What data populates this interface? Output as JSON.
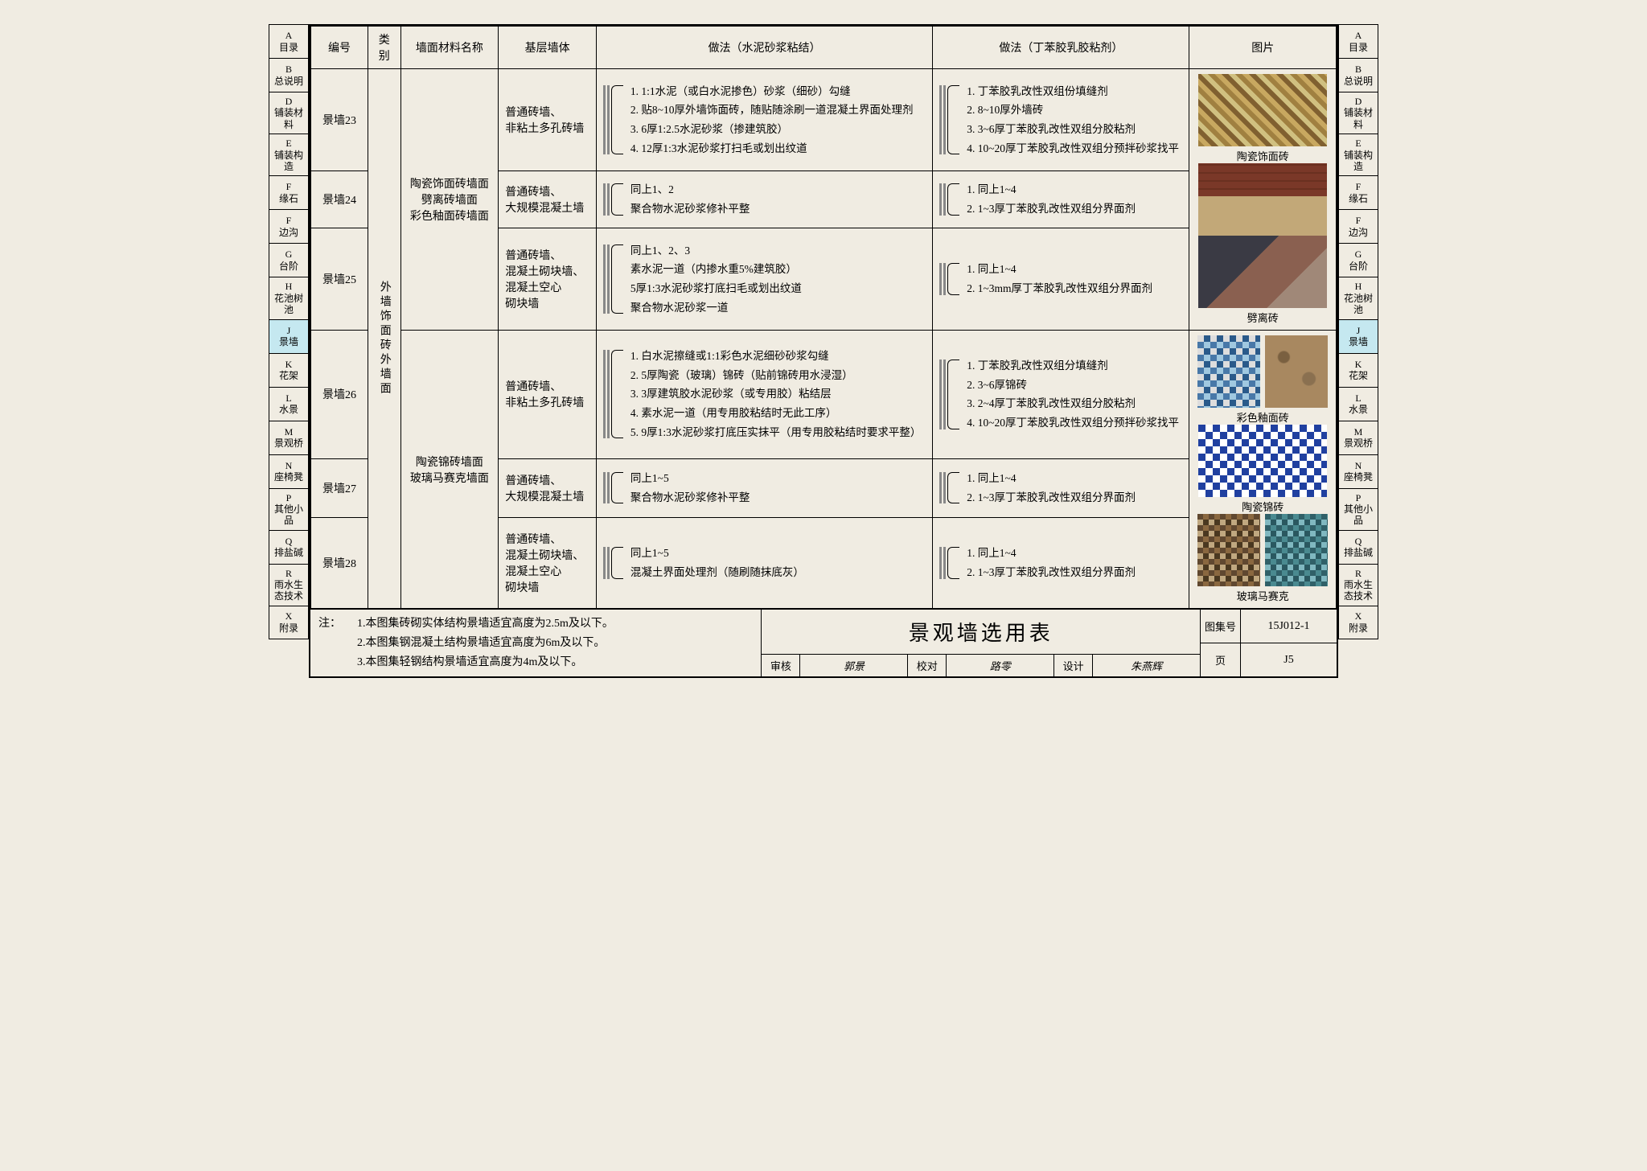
{
  "nav": [
    {
      "code": "A",
      "label": "目录"
    },
    {
      "code": "B",
      "label": "总说明"
    },
    {
      "code": "D",
      "label": "铺装材料"
    },
    {
      "code": "E",
      "label": "铺装构造"
    },
    {
      "code": "F",
      "label": "缘石"
    },
    {
      "code": "F",
      "label": "边沟"
    },
    {
      "code": "G",
      "label": "台阶"
    },
    {
      "code": "H",
      "label": "花池树池"
    },
    {
      "code": "J",
      "label": "景墙",
      "active": true
    },
    {
      "code": "K",
      "label": "花架"
    },
    {
      "code": "L",
      "label": "水景"
    },
    {
      "code": "M",
      "label": "景观桥"
    },
    {
      "code": "N",
      "label": "座椅凳"
    },
    {
      "code": "P",
      "label": "其他小品"
    },
    {
      "code": "Q",
      "label": "排盐碱"
    },
    {
      "code": "R",
      "label": "雨水生态技术"
    },
    {
      "code": "X",
      "label": "附录"
    }
  ],
  "headers": {
    "col1": "编号",
    "col2": "类别",
    "col3": "墙面材料名称",
    "col4": "基层墙体",
    "col5": "做法（水泥砂浆粘结）",
    "col6": "做法（丁苯胶乳胶粘剂）",
    "col7": "图片"
  },
  "category": "外墙饰面砖外墙面",
  "group1": "陶瓷饰面砖墙面\n劈离砖墙面\n彩色釉面砖墙面",
  "group2": "陶瓷锦砖墙面\n玻璃马赛克墙面",
  "rows": {
    "r1": {
      "id": "景墙23",
      "base": "普通砖墙、\n非粘土多孔砖墙",
      "a1": "1. 1:1水泥（或白水泥掺色）砂浆（细砂）勾缝",
      "a2": "2. 贴8~10厚外墙饰面砖，随贴随涂刷一道混凝土界面处理剂",
      "a3": "3. 6厚1:2.5水泥砂浆（掺建筑胶）",
      "a4": "4. 12厚1:3水泥砂浆打扫毛或划出纹道",
      "b1": "1. 丁苯胶乳改性双组份填缝剂",
      "b2": "2. 8~10厚外墙砖",
      "b3": "3. 3~6厚丁苯胶乳改性双组分胶粘剂",
      "b4": "4. 10~20厚丁苯胶乳改性双组分预拌砂浆找平"
    },
    "r2": {
      "id": "景墙24",
      "base": "普通砖墙、\n大规模混凝土墙",
      "a1": "同上1、2",
      "a2": "聚合物水泥砂浆修补平整",
      "b1": "1. 同上1~4",
      "b2": "2. 1~3厚丁苯胶乳改性双组分界面剂"
    },
    "r3": {
      "id": "景墙25",
      "base": "普通砖墙、\n混凝土砌块墙、\n混凝土空心\n砌块墙",
      "a1": "同上1、2、3",
      "a2": "素水泥一道（内掺水重5%建筑胶）",
      "a3": "5厚1:3水泥砂浆打底扫毛或划出纹道",
      "a4": "聚合物水泥砂浆一道",
      "b1": "1. 同上1~4",
      "b2": "2. 1~3mm厚丁苯胶乳改性双组分界面剂"
    },
    "r4": {
      "id": "景墙26",
      "base": "普通砖墙、\n非粘土多孔砖墙",
      "a1": "1. 白水泥擦缝或1:1彩色水泥细砂砂浆勾缝",
      "a2": "2. 5厚陶瓷（玻璃）锦砖（贴前锦砖用水浸湿）",
      "a3": "3. 3厚建筑胶水泥砂浆（或专用胶）粘结层",
      "a4": "4. 素水泥一道（用专用胶粘结时无此工序）",
      "a5": "5. 9厚1:3水泥砂浆打底压实抹平（用专用胶粘结时要求平整）",
      "b1": "1. 丁苯胶乳改性双组分填缝剂",
      "b2": "2. 3~6厚锦砖",
      "b3": "3. 2~4厚丁苯胶乳改性双组分胶粘剂",
      "b4": "4. 10~20厚丁苯胶乳改性双组分预拌砂浆找平"
    },
    "r5": {
      "id": "景墙27",
      "base": "普通砖墙、\n大规模混凝土墙",
      "a1": "同上1~5",
      "a2": "聚合物水泥砂浆修补平整",
      "b1": "1. 同上1~4",
      "b2": "2. 1~3厚丁苯胶乳改性双组分界面剂"
    },
    "r6": {
      "id": "景墙28",
      "base": "普通砖墙、\n混凝土砌块墙、\n混凝土空心\n砌块墙",
      "a1": "同上1~5",
      "a2": "混凝土界面处理剂（随刷随抹底灰）",
      "b1": "1. 同上1~4",
      "b2": "2. 1~3厚丁苯胶乳改性双组分界面剂"
    }
  },
  "imgLabels": {
    "i1": "陶瓷饰面砖",
    "i2": "劈离砖",
    "i3": "彩色釉面砖",
    "i4": "陶瓷锦砖",
    "i5": "玻璃马赛克"
  },
  "footer": {
    "notesHead": "注：",
    "n1": "1.本图集砖砌实体结构景墙适宜高度为2.5m及以下。",
    "n2": "2.本图集钢混凝土结构景墙适宜高度为6m及以下。",
    "n3": "3.本图集轻钢结构景墙适宜高度为4m及以下。",
    "title": "景观墙选用表",
    "shk": "审核",
    "shkv": "郭景",
    "jd": "校对",
    "jdv": "路零",
    "sj": "设计",
    "sjv": "朱燕辉",
    "codeL": "图集号",
    "code": "15J012-1",
    "pageL": "页",
    "page": "J5"
  }
}
